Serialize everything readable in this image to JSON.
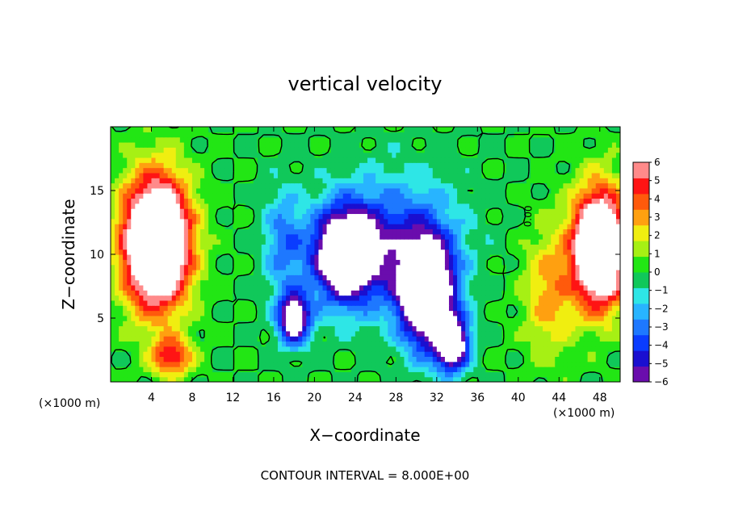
{
  "chart_data": {
    "type": "heatmap",
    "title": "vertical velocity",
    "xlabel": "X−coordinate",
    "ylabel": "Z−coordinate",
    "x_units_left": "(×1000 m)",
    "x_units_right": "(×1000 m)",
    "xlim": [
      0,
      50
    ],
    "ylim": [
      0,
      20
    ],
    "xticks": [
      4,
      8,
      12,
      16,
      20,
      24,
      28,
      32,
      36,
      40,
      44,
      48
    ],
    "yticks": [
      5,
      10,
      15
    ],
    "colorbar": {
      "ticks": [
        "6",
        "5",
        "4",
        "3",
        "2",
        "1",
        "0",
        "−1",
        "−2",
        "−3",
        "−4",
        "−5",
        "−6"
      ],
      "vmin": -6,
      "vmax": 6,
      "colors": [
        "#6a0dad",
        "#1a0fd0",
        "#0a3cff",
        "#1e78ff",
        "#28b4ff",
        "#2ee6e6",
        "#10c85a",
        "#22e614",
        "#a6f014",
        "#f0ee10",
        "#ffa010",
        "#ff5a0c",
        "#ff1414",
        "#ff8a8a"
      ]
    },
    "footer": "CONTOUR INTERVAL = 8.000E+00",
    "contour_label": "0.00",
    "field_features": [
      {
        "kind": "updraft",
        "x": 4.5,
        "z": 11,
        "sx": 3.2,
        "sz": 5.0,
        "amp": 13
      },
      {
        "kind": "updraft",
        "x": 48,
        "z": 10.5,
        "sx": 2.6,
        "sz": 4.5,
        "amp": 12
      },
      {
        "kind": "downdraft",
        "x": 23,
        "z": 10,
        "sx": 3.0,
        "sz": 3.5,
        "amp": -10
      },
      {
        "kind": "downdraft",
        "x": 31,
        "z": 7,
        "sx": 2.6,
        "sz": 4.0,
        "amp": -11
      },
      {
        "kind": "downdraft",
        "x": 18,
        "z": 5,
        "sx": 1.6,
        "sz": 2.0,
        "amp": -8
      },
      {
        "kind": "downdraft",
        "x": 33.5,
        "z": 3,
        "sx": 1.6,
        "sz": 2.0,
        "amp": -9
      },
      {
        "kind": "downdraft",
        "x": 28,
        "z": 11,
        "sx": 6.0,
        "sz": 5.0,
        "amp": -4
      },
      {
        "kind": "updraft",
        "x": 6,
        "z": 2,
        "sx": 2.0,
        "sz": 1.5,
        "amp": 5
      },
      {
        "kind": "updraft",
        "x": 43,
        "z": 7,
        "sx": 2.5,
        "sz": 5.0,
        "amp": 3
      },
      {
        "kind": "downdraft",
        "x": 17,
        "z": 11,
        "sx": 2.0,
        "sz": 4.0,
        "amp": -3
      }
    ]
  }
}
